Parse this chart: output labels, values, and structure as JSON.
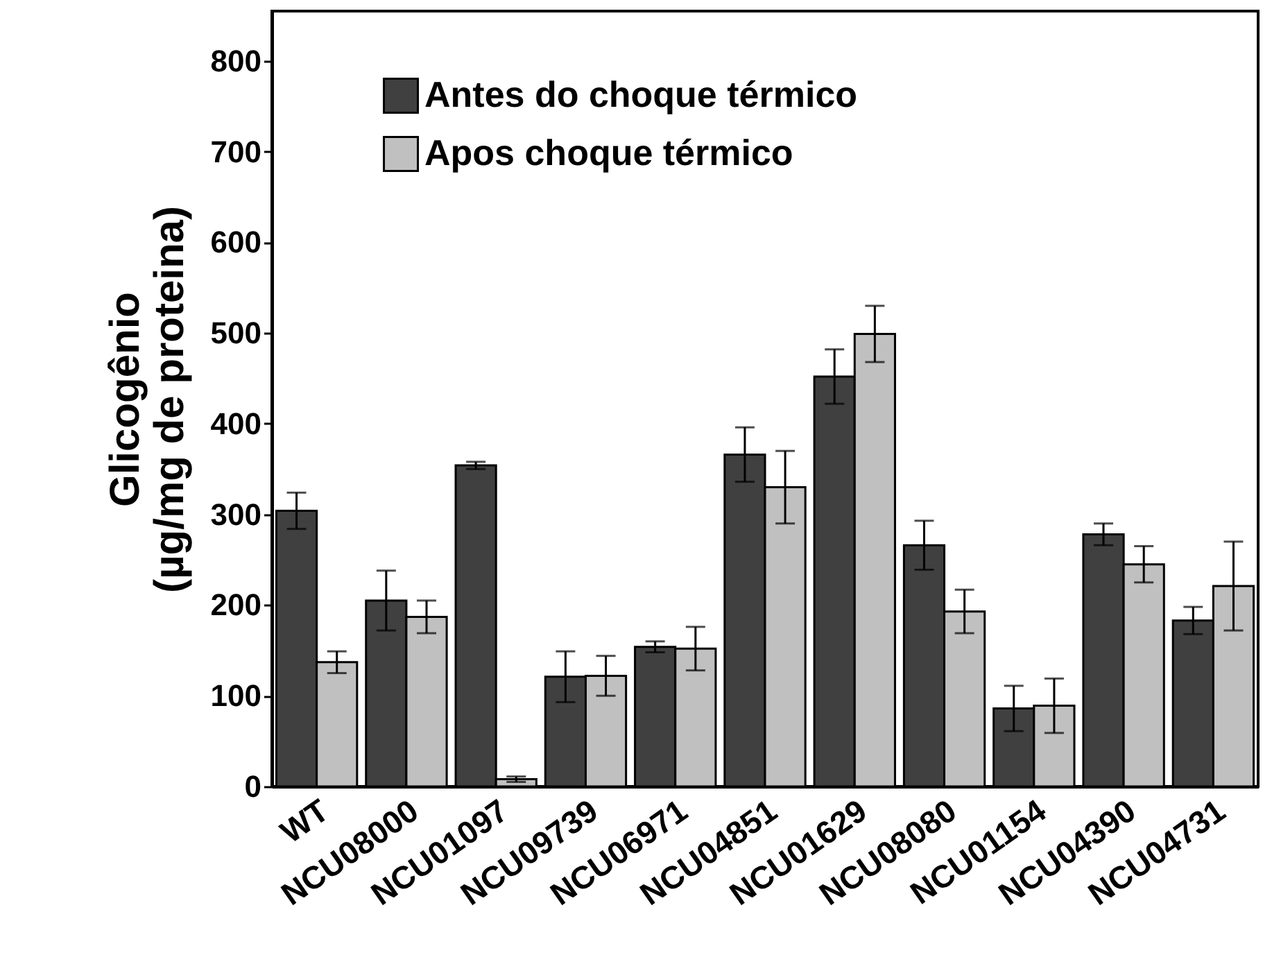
{
  "chart_data": {
    "type": "bar",
    "ylabel": "Glicogênio\n(µg/mg de proteina)",
    "categories": [
      "WT",
      "NCU08000",
      "NCU01097",
      "NCU09739",
      "NCU06971",
      "NCU04851",
      "NCU01629",
      "NCU08080",
      "NCU01154",
      "NCU04390",
      "NCU04731"
    ],
    "series": [
      {
        "name": "Antes do choque térmico",
        "color": "#404040",
        "values": [
          304,
          205,
          354,
          121,
          154,
          366,
          452,
          266,
          86,
          278,
          183
        ],
        "errors": [
          20,
          33,
          4,
          28,
          6,
          30,
          30,
          27,
          25,
          12,
          15
        ]
      },
      {
        "name": "Apos choque térmico",
        "color": "#c0c0c0",
        "values": [
          137,
          187,
          8,
          122,
          152,
          330,
          499,
          193,
          89,
          245,
          221
        ],
        "errors": [
          12,
          18,
          3,
          22,
          24,
          40,
          31,
          24,
          30,
          20,
          49
        ]
      }
    ],
    "ylim": [
      0,
      855
    ],
    "yticks": [
      0,
      100,
      200,
      300,
      400,
      500,
      600,
      700,
      800
    ],
    "grid": false,
    "legend": "top left"
  }
}
